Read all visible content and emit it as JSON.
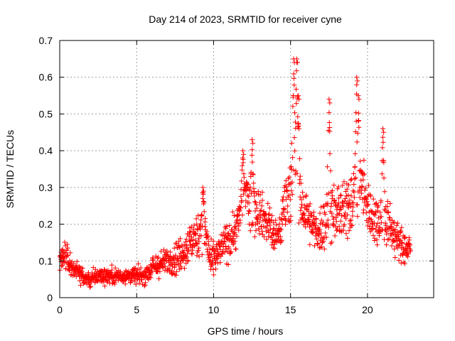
{
  "chart_data": {
    "type": "scatter",
    "title": "Day 214 of 2023, SRMTID for receiver cyne",
    "xlabel": "GPS time / hours",
    "ylabel": "SRMTID / TECUs",
    "xlim": [
      0,
      24.3
    ],
    "ylim": [
      0,
      0.7
    ],
    "x_ticks": [
      0,
      5,
      10,
      15,
      20
    ],
    "x_tick_labels": [
      "0",
      "5",
      "10",
      "15",
      "20"
    ],
    "y_ticks": [
      0,
      0.1,
      0.2,
      0.3,
      0.4,
      0.5,
      0.6,
      0.7
    ],
    "y_tick_labels": [
      "0",
      "0.1",
      "0.2",
      "0.3",
      "0.4",
      "0.5",
      "0.6",
      "0.7"
    ],
    "grid": true,
    "marker": "+",
    "marker_color": "#ff0000",
    "series": [
      {
        "name": "SRMTID",
        "profile": {
          "x": [
            0.0,
            0.2,
            0.4,
            0.6,
            0.8,
            1.0,
            1.3,
            1.6,
            2.0,
            2.5,
            3.0,
            3.5,
            4.0,
            4.5,
            5.0,
            5.5,
            6.0,
            6.5,
            7.0,
            7.5,
            8.0,
            8.5,
            9.0,
            9.3,
            9.5,
            9.8,
            10.2,
            10.6,
            11.0,
            11.5,
            11.8,
            12.2,
            12.5,
            12.8,
            13.2,
            13.6,
            14.0,
            14.3,
            14.6,
            14.9,
            15.2,
            15.4,
            15.7,
            16.0,
            16.3,
            16.6,
            17.0,
            17.4,
            17.8,
            18.1,
            18.5,
            18.8,
            19.0,
            19.3,
            19.6,
            19.9,
            20.3,
            20.7,
            21.0,
            21.3,
            21.6,
            22.0,
            22.3,
            22.6,
            22.8
          ],
          "center": [
            0.1,
            0.11,
            0.12,
            0.09,
            0.08,
            0.08,
            0.07,
            0.05,
            0.05,
            0.06,
            0.06,
            0.06,
            0.06,
            0.06,
            0.06,
            0.06,
            0.08,
            0.09,
            0.1,
            0.11,
            0.12,
            0.15,
            0.17,
            0.19,
            0.18,
            0.09,
            0.11,
            0.14,
            0.16,
            0.19,
            0.24,
            0.28,
            0.23,
            0.25,
            0.22,
            0.2,
            0.16,
            0.17,
            0.26,
            0.3,
            0.32,
            0.27,
            0.25,
            0.23,
            0.2,
            0.18,
            0.19,
            0.22,
            0.22,
            0.24,
            0.22,
            0.26,
            0.27,
            0.26,
            0.32,
            0.26,
            0.22,
            0.21,
            0.2,
            0.21,
            0.18,
            0.15,
            0.14,
            0.13,
            0.13
          ],
          "spread": [
            0.03,
            0.03,
            0.04,
            0.03,
            0.02,
            0.02,
            0.02,
            0.02,
            0.02,
            0.02,
            0.02,
            0.02,
            0.02,
            0.02,
            0.02,
            0.02,
            0.03,
            0.03,
            0.03,
            0.04,
            0.04,
            0.05,
            0.05,
            0.06,
            0.06,
            0.04,
            0.04,
            0.04,
            0.05,
            0.05,
            0.06,
            0.07,
            0.06,
            0.06,
            0.05,
            0.05,
            0.04,
            0.05,
            0.06,
            0.09,
            0.12,
            0.08,
            0.07,
            0.06,
            0.05,
            0.05,
            0.06,
            0.07,
            0.07,
            0.07,
            0.07,
            0.08,
            0.08,
            0.08,
            0.09,
            0.07,
            0.06,
            0.06,
            0.06,
            0.06,
            0.05,
            0.04,
            0.04,
            0.04,
            0.04
          ]
        },
        "peaks": [
          {
            "x": 9.3,
            "y": 0.3
          },
          {
            "x": 11.9,
            "y": 0.4
          },
          {
            "x": 12.5,
            "y": 0.43
          },
          {
            "x": 15.2,
            "y": 0.65
          },
          {
            "x": 15.4,
            "y": 0.65
          },
          {
            "x": 15.5,
            "y": 0.55
          },
          {
            "x": 17.5,
            "y": 0.54
          },
          {
            "x": 19.3,
            "y": 0.6
          },
          {
            "x": 19.4,
            "y": 0.55
          },
          {
            "x": 21.0,
            "y": 0.46
          }
        ],
        "x_range": [
          0.0,
          22.8
        ],
        "sample_count": 1500
      }
    ]
  }
}
